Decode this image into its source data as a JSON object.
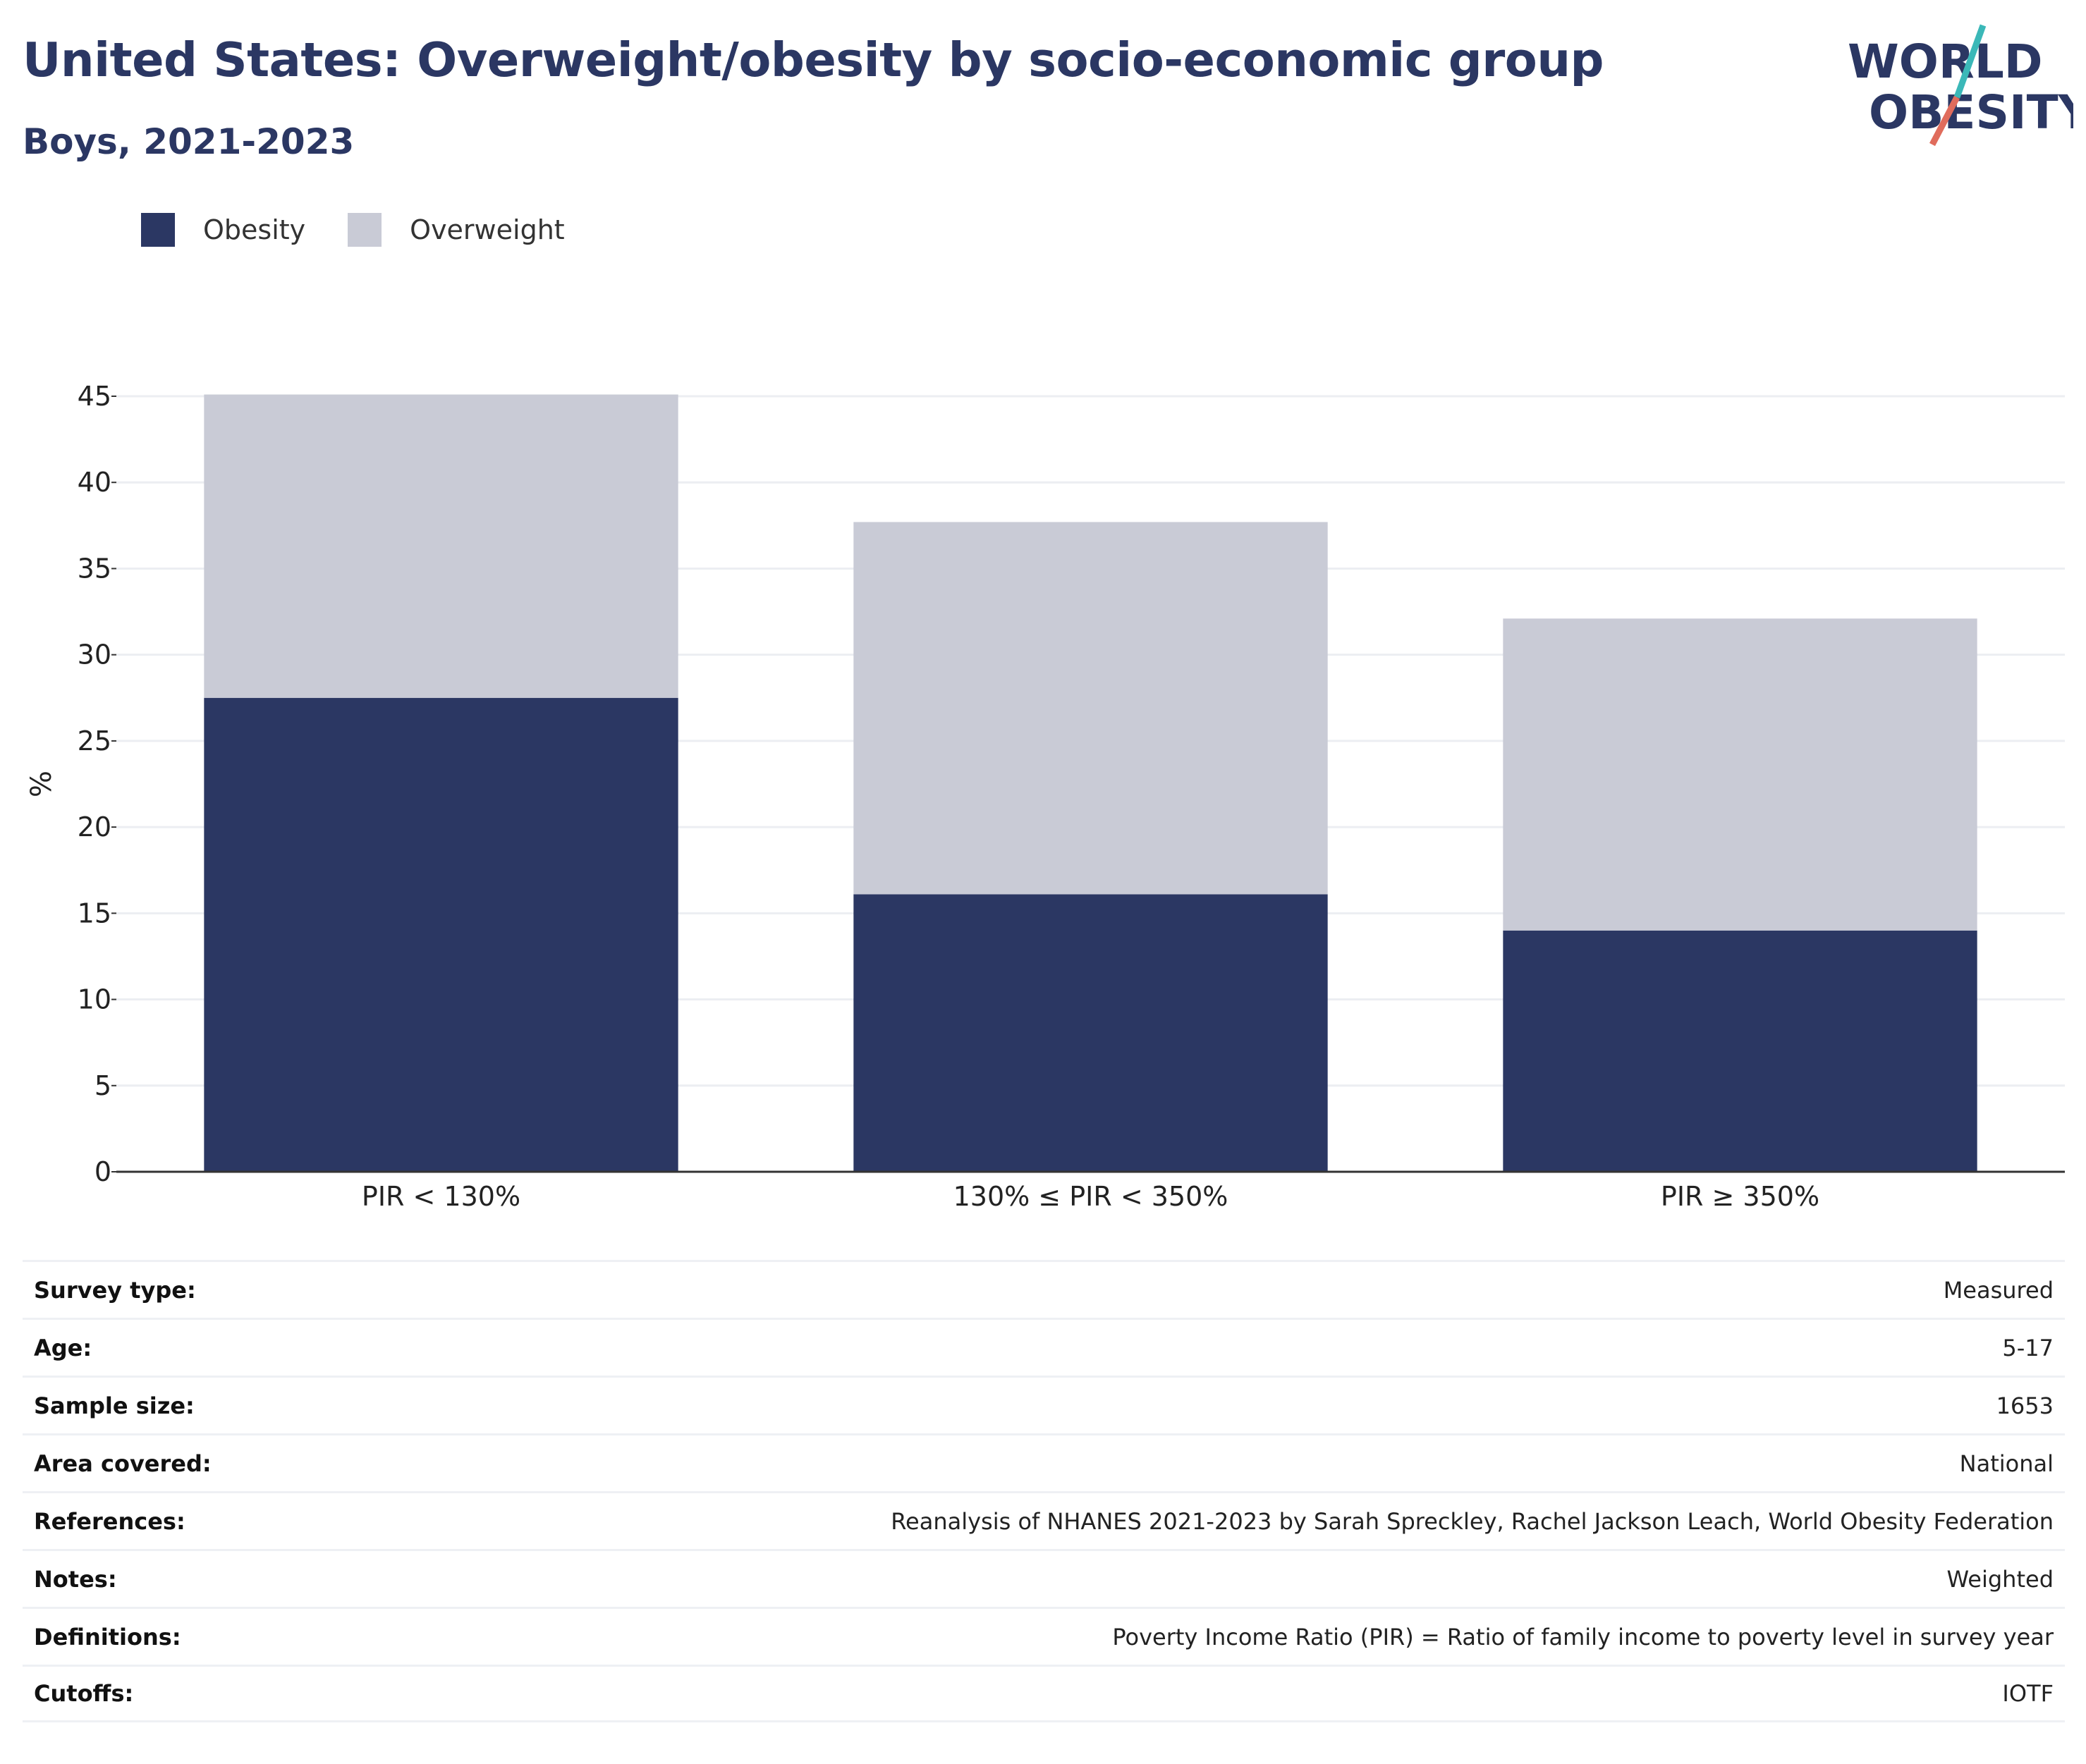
{
  "header": {
    "title": "United States: Overweight/obesity by socio-economic group",
    "subtitle": "Boys, 2021-2023"
  },
  "logo": {
    "line1": "WORLD",
    "line2": "OBESITY",
    "colors": {
      "text": "#2b3763",
      "stroke_top": "#3bb8b8",
      "stroke_bottom": "#e06c5c"
    }
  },
  "colors": {
    "obesity": "#2b3763",
    "overweight": "#c9cbd6",
    "grid": "#eceef2",
    "axis": "#333333"
  },
  "chart_data": {
    "type": "bar",
    "stacked": true,
    "categories": [
      "PIR < 130%",
      "130% ≤ PIR < 350%",
      "PIR ≥ 350%"
    ],
    "series": [
      {
        "name": "Obesity",
        "values": [
          27.5,
          16.1,
          14.0
        ]
      },
      {
        "name": "Overweight",
        "values": [
          17.6,
          21.6,
          18.1
        ]
      }
    ],
    "ylabel": "%",
    "xlabel": "",
    "ylim": [
      0,
      45
    ],
    "yticks": [
      0,
      5,
      10,
      15,
      20,
      25,
      30,
      35,
      40,
      45
    ],
    "grid": true,
    "legend_position": "top-left"
  },
  "metadata": [
    {
      "label": "Survey type:",
      "value": "Measured"
    },
    {
      "label": "Age:",
      "value": "5-17"
    },
    {
      "label": "Sample size:",
      "value": "1653"
    },
    {
      "label": "Area covered:",
      "value": "National"
    },
    {
      "label": "References:",
      "value": "Reanalysis of NHANES 2021-2023 by Sarah Spreckley, Rachel Jackson Leach, World Obesity Federation"
    },
    {
      "label": "Notes:",
      "value": "Weighted"
    },
    {
      "label": "Definitions:",
      "value": "Poverty Income Ratio (PIR) = Ratio of family income to poverty level in survey year"
    },
    {
      "label": "Cutoffs:",
      "value": "IOTF"
    }
  ]
}
